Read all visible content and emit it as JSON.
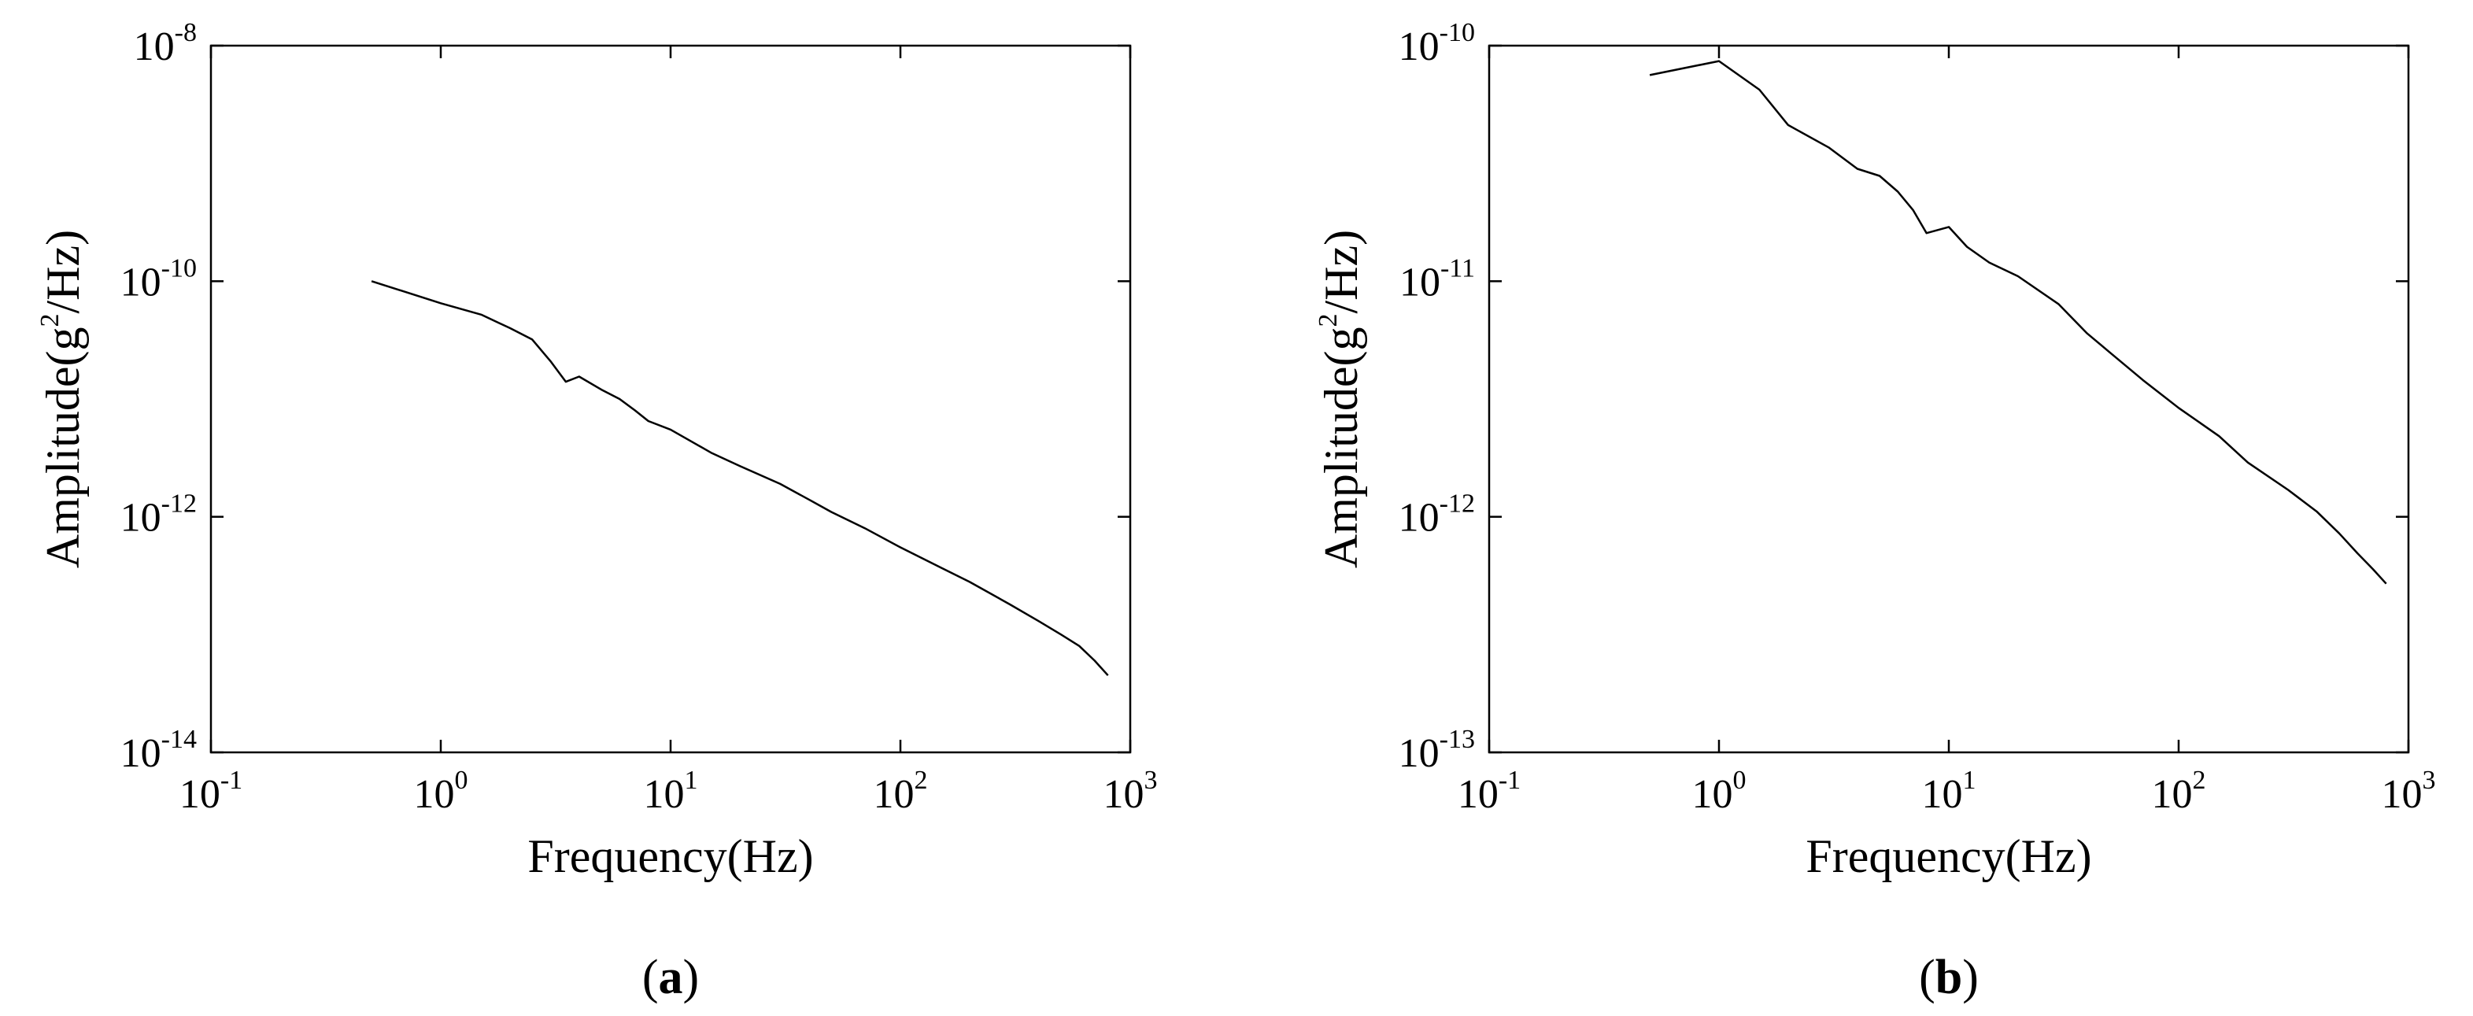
{
  "chart_data": [
    {
      "type": "line",
      "panel": "a",
      "xlabel": "Frequency(Hz)",
      "ylabel_base": "Amplitude(g",
      "ylabel_exp": "2",
      "ylabel_tail": "/Hz)",
      "x_scale": "log",
      "y_scale": "log",
      "xlim": [
        0.1,
        1000
      ],
      "ylim": [
        1e-14,
        1e-08
      ],
      "x_ticks": [
        {
          "base": "10",
          "exp": "-1",
          "v": 0.1
        },
        {
          "base": "10",
          "exp": "0",
          "v": 1
        },
        {
          "base": "10",
          "exp": "1",
          "v": 10
        },
        {
          "base": "10",
          "exp": "2",
          "v": 100
        },
        {
          "base": "10",
          "exp": "3",
          "v": 1000
        }
      ],
      "y_ticks": [
        {
          "base": "10",
          "exp": "-8",
          "v": 1e-08
        },
        {
          "base": "10",
          "exp": "-10",
          "v": 1e-10
        },
        {
          "base": "10",
          "exp": "-12",
          "v": 1e-12
        },
        {
          "base": "10",
          "exp": "-14",
          "v": 1e-14
        }
      ],
      "grid": false,
      "series": [
        {
          "points": [
            [
              0.5,
              1e-10
            ],
            [
              1.0,
              6.5e-11
            ],
            [
              1.5,
              5.2e-11
            ],
            [
              2.0,
              4e-11
            ],
            [
              2.5,
              3.2e-11
            ],
            [
              3.0,
              2.1e-11
            ],
            [
              3.5,
              1.4e-11
            ],
            [
              4.0,
              1.55e-11
            ],
            [
              5.0,
              1.2e-11
            ],
            [
              6.0,
              1e-11
            ],
            [
              7.0,
              8e-12
            ],
            [
              8.0,
              6.5e-12
            ],
            [
              10.0,
              5.5e-12
            ],
            [
              15.0,
              3.5e-12
            ],
            [
              20.0,
              2.7e-12
            ],
            [
              30.0,
              1.9e-12
            ],
            [
              40.0,
              1.4e-12
            ],
            [
              50.0,
              1.1e-12
            ],
            [
              70.0,
              8e-13
            ],
            [
              100.0,
              5.5e-13
            ],
            [
              150.0,
              3.7e-13
            ],
            [
              200.0,
              2.8e-13
            ],
            [
              300.0,
              1.8e-13
            ],
            [
              400.0,
              1.3e-13
            ],
            [
              500.0,
              1e-13
            ],
            [
              600.0,
              8e-14
            ],
            [
              700.0,
              6e-14
            ],
            [
              800.0,
              4.5e-14
            ]
          ],
          "color": "#000000"
        }
      ]
    },
    {
      "type": "line",
      "panel": "b",
      "xlabel": "Frequency(Hz)",
      "ylabel_base": "Amplitude(g",
      "ylabel_exp": "2",
      "ylabel_tail": "/Hz)",
      "x_scale": "log",
      "y_scale": "log",
      "xlim": [
        0.1,
        1000
      ],
      "ylim": [
        1e-13,
        1e-10
      ],
      "x_ticks": [
        {
          "base": "10",
          "exp": "-1",
          "v": 0.1
        },
        {
          "base": "10",
          "exp": "0",
          "v": 1
        },
        {
          "base": "10",
          "exp": "1",
          "v": 10
        },
        {
          "base": "10",
          "exp": "2",
          "v": 100
        },
        {
          "base": "10",
          "exp": "3",
          "v": 1000
        }
      ],
      "y_ticks": [
        {
          "base": "10",
          "exp": "-10",
          "v": 1e-10
        },
        {
          "base": "10",
          "exp": "-11",
          "v": 1e-11
        },
        {
          "base": "10",
          "exp": "-12",
          "v": 1e-12
        },
        {
          "base": "10",
          "exp": "-13",
          "v": 1e-13
        }
      ],
      "grid": false,
      "series": [
        {
          "points": [
            [
              0.5,
              7.5e-11
            ],
            [
              1.0,
              8.6e-11
            ],
            [
              1.5,
              6.5e-11
            ],
            [
              2.0,
              4.6e-11
            ],
            [
              3.0,
              3.7e-11
            ],
            [
              4.0,
              3e-11
            ],
            [
              5.0,
              2.8e-11
            ],
            [
              6.0,
              2.4e-11
            ],
            [
              7.0,
              2e-11
            ],
            [
              8.0,
              1.6e-11
            ],
            [
              10.0,
              1.7e-11
            ],
            [
              12.0,
              1.4e-11
            ],
            [
              15.0,
              1.2e-11
            ],
            [
              20.0,
              1.05e-11
            ],
            [
              30.0,
              8e-12
            ],
            [
              40.0,
              6e-12
            ],
            [
              50.0,
              5e-12
            ],
            [
              70.0,
              3.8e-12
            ],
            [
              100.0,
              2.9e-12
            ],
            [
              150.0,
              2.2e-12
            ],
            [
              200.0,
              1.7e-12
            ],
            [
              300.0,
              1.3e-12
            ],
            [
              400.0,
              1.05e-12
            ],
            [
              500.0,
              8.5e-13
            ],
            [
              600.0,
              7e-13
            ],
            [
              700.0,
              6e-13
            ],
            [
              800.0,
              5.2e-13
            ]
          ],
          "color": "#000000"
        }
      ]
    }
  ]
}
